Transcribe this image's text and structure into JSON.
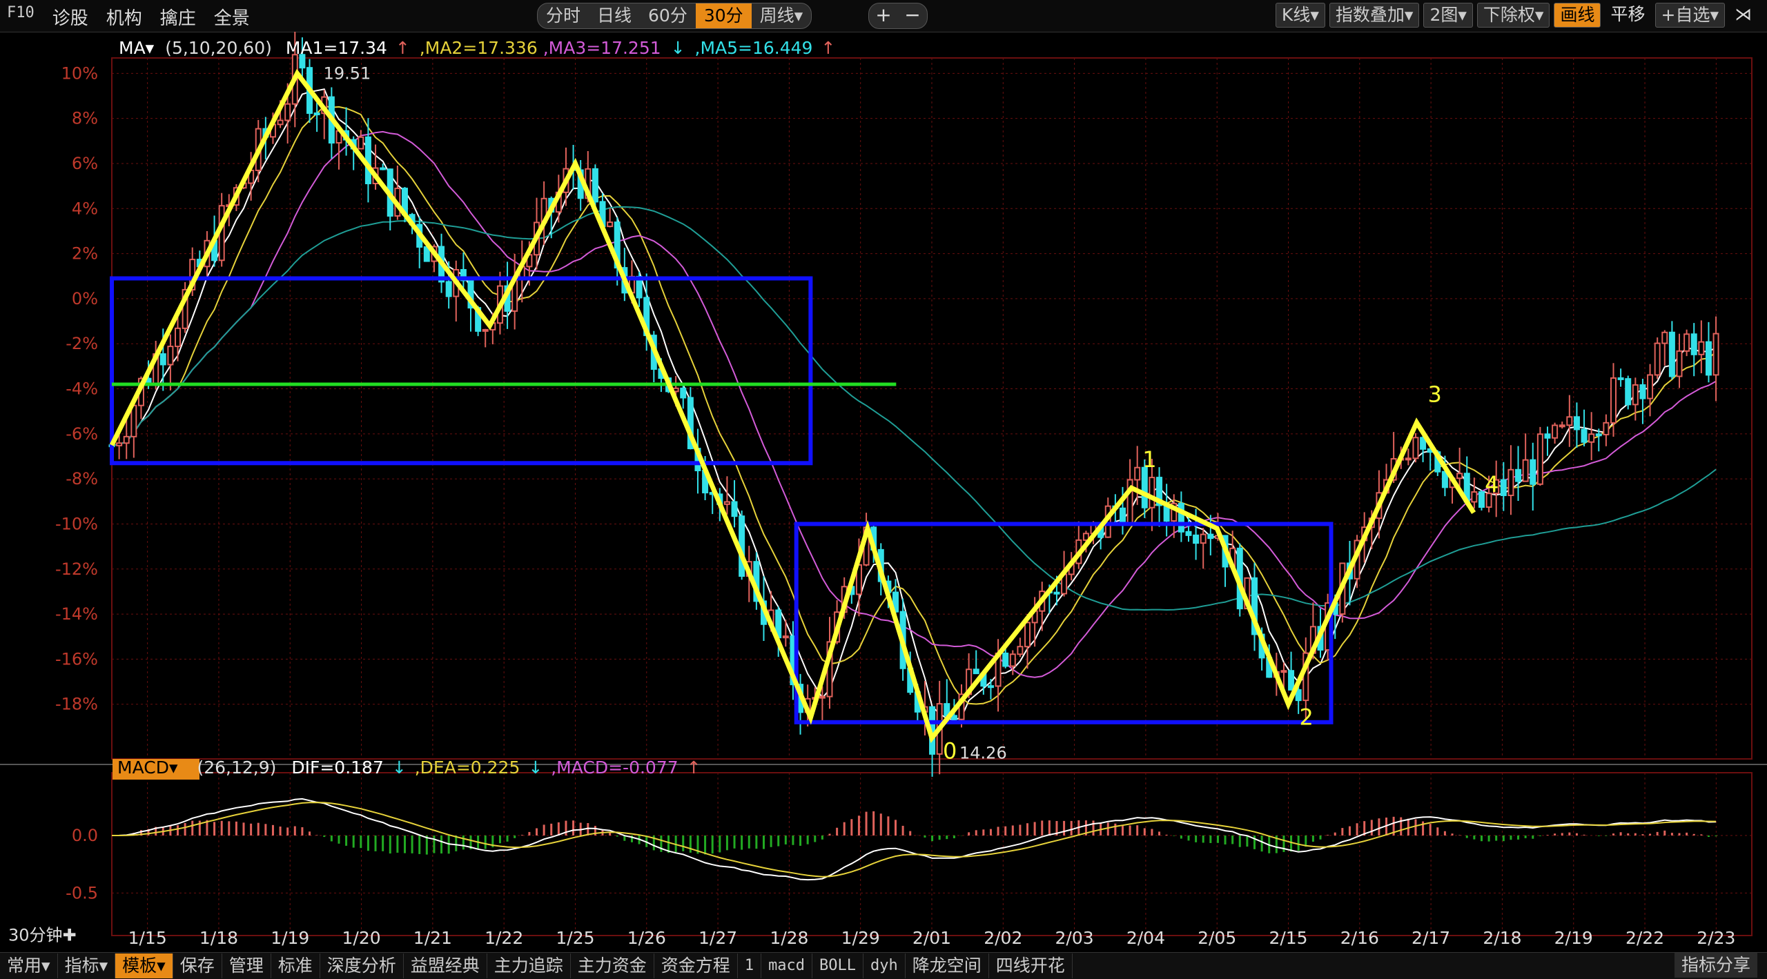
{
  "toolbar": {
    "left": [
      "F10",
      "诊股",
      "机构",
      "擒庄",
      "全景"
    ],
    "periods": [
      "分时",
      "日线",
      "60分",
      "30分",
      "周线▾"
    ],
    "active_period": "30分",
    "zoom": [
      "+",
      "−"
    ],
    "right": [
      "K线▾",
      "指数叠加▾",
      "2图▾",
      "下除权▾",
      "画线",
      "平移",
      "+自选▾",
      "⋊"
    ],
    "active_right": "画线"
  },
  "ma_legend": {
    "label": "MA▾",
    "params": "(5,10,20,60)",
    "ma1": "MA1=17.34",
    "ma1_arrow": "↑",
    "ma2": ",MA2=17.336",
    "ma3": ",MA3=17.251",
    "ma3_arrow": "↓",
    "ma5": ",MA5=16.449",
    "ma5_arrow": "↑"
  },
  "macd_legend": {
    "label": "MACD▾",
    "params": "(26,12,9)",
    "dif": "DIF=0.187",
    "dif_arrow": "↓",
    "dea": ",DEA=0.225",
    "dea_arrow": "↓",
    "macd": ",MACD=-0.077",
    "macd_arrow": "↑"
  },
  "period_label": "30分钟✚",
  "bottom": {
    "items": [
      "常用▾",
      "指标▾",
      "模板▾",
      "保存",
      "管理",
      "标准",
      "深度分析",
      "益盟经典",
      "主力追踪",
      "主力资金",
      "资金方程",
      "1",
      "macd",
      "BOLL",
      "dyh",
      "降龙空间",
      "四线开花"
    ],
    "active": "模板▾",
    "right": "指标分享"
  },
  "colors": {
    "bg": "#000000",
    "grid": "#6b0f0f",
    "axis_text": "#c0392b",
    "up": "#e0625b",
    "down": "#33e0e8",
    "ma1": "#ffffff",
    "ma2": "#e6d23a",
    "ma3": "#d35bd8",
    "ma5": "#1f9e96",
    "zigzag": "#ffff33",
    "box": "#1010ff",
    "hline": "#22dd22"
  },
  "chart_data": {
    "type": "candlestick",
    "x_labels": [
      "1/15",
      "1/18",
      "1/19",
      "1/20",
      "1/21",
      "1/22",
      "1/25",
      "1/26",
      "1/27",
      "1/28",
      "1/29",
      "2/01",
      "2/02",
      "2/03",
      "2/04",
      "2/05",
      "2/15",
      "2/16",
      "2/17",
      "2/18",
      "2/19",
      "2/22",
      "2/23"
    ],
    "y_ticks": [
      "10%",
      "8%",
      "6%",
      "4%",
      "2%",
      "0%",
      "-2%",
      "-4%",
      "-6%",
      "-8%",
      "-10%",
      "-12%",
      "-14%",
      "-16%",
      "-18%"
    ],
    "ylim": [
      -20,
      10.5
    ],
    "high_label": "19.51",
    "low_label": "14.26",
    "zigzag": [
      [
        0,
        -6.5
      ],
      [
        2.6,
        10
      ],
      [
        5.3,
        -1.2
      ],
      [
        6.5,
        6
      ],
      [
        9.8,
        -18.6
      ],
      [
        10.6,
        -10.2
      ],
      [
        11.5,
        -19.5
      ],
      [
        14.3,
        -8.4
      ],
      [
        15.5,
        -10.2
      ],
      [
        16.5,
        -18
      ],
      [
        18.3,
        -5.5
      ],
      [
        19.1,
        -9.5
      ]
    ],
    "zigzag_points": [
      {
        "label": "0",
        "x": 11.5,
        "y": -19.5
      },
      {
        "label": "1",
        "x": 14.3,
        "y": -8.4
      },
      {
        "label": "2",
        "x": 16.5,
        "y": -18
      },
      {
        "label": "3",
        "x": 18.3,
        "y": -5.5
      },
      {
        "label": "4",
        "x": 19.1,
        "y": -9.5
      }
    ],
    "boxes": [
      {
        "x0": 0,
        "x1": 9.8,
        "y0": -7.3,
        "y1": 0.9
      },
      {
        "x0": 9.6,
        "x1": 17.1,
        "y0": -18.8,
        "y1": -10.0
      }
    ],
    "hline": {
      "x0": 0,
      "x1": 11.0,
      "y": -3.8
    },
    "macd_ticks": [
      "0.0",
      "-0.5"
    ],
    "macd_ylim": [
      -0.75,
      0.45
    ]
  }
}
